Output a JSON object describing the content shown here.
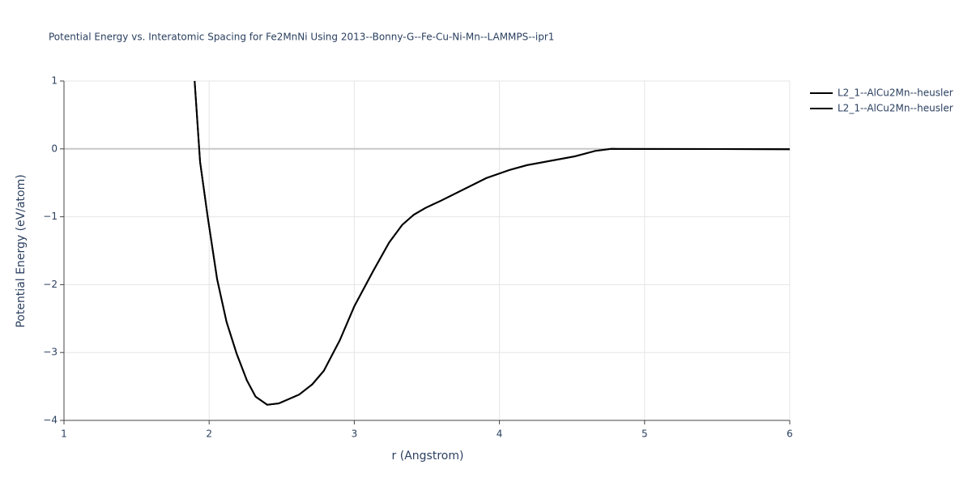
{
  "chart_data": {
    "type": "line",
    "title": "Potential Energy vs. Interatomic Spacing for Fe2MnNi Using 2013--Bonny-G--Fe-Cu-Ni-Mn--LAMMPS--ipr1",
    "x_label": "r (Angstrom)",
    "y_label": "Potential Energy (eV/atom)",
    "x": [
      1.9,
      1.9375,
      1.99,
      2.055,
      2.12,
      2.19,
      2.26,
      2.32,
      2.4,
      2.48,
      2.62,
      2.71,
      2.79,
      2.9,
      3.0,
      3.13,
      3.24,
      3.33,
      3.41,
      3.49,
      3.6,
      3.91,
      4.07,
      4.19,
      4.52,
      4.66,
      4.77,
      6.0
    ],
    "series": [
      {
        "name": "L2_1--AlCu2Mn--heusler",
        "color": "#000000",
        "values": [
          1,
          -0.19,
          -1.0,
          -1.92,
          -2.55,
          -3.02,
          -3.41,
          -3.65,
          -3.77,
          -3.75,
          -3.62,
          -3.47,
          -3.27,
          -2.82,
          -2.32,
          -1.8,
          -1.38,
          -1.12,
          -0.97,
          -0.87,
          -0.76,
          -0.43,
          -0.31,
          -0.24,
          -0.11,
          -0.03,
          0,
          -0.005
        ]
      },
      {
        "name": "L2_1--AlCu2Mn--heusler",
        "color": "#000000",
        "values": [
          1,
          -0.19,
          -1.0,
          -1.92,
          -2.55,
          -3.02,
          -3.41,
          -3.65,
          -3.77,
          -3.75,
          -3.62,
          -3.47,
          -3.27,
          -2.82,
          -2.32,
          -1.8,
          -1.38,
          -1.12,
          -0.97,
          -0.87,
          -0.76,
          -0.43,
          -0.31,
          -0.24,
          -0.11,
          -0.03,
          0,
          -0.005
        ]
      }
    ],
    "xlim": [
      1,
      6
    ],
    "xticks": [
      1,
      2,
      3,
      4,
      5,
      6
    ],
    "ylim": [
      -4,
      1
    ],
    "yticks": [
      {
        "value": -4,
        "label": "−4"
      },
      {
        "value": -3,
        "label": "−3"
      },
      {
        "value": -2,
        "label": "−2"
      },
      {
        "value": -1,
        "label": "−1"
      },
      0,
      1
    ],
    "grid": true,
    "legend": "top-right"
  }
}
